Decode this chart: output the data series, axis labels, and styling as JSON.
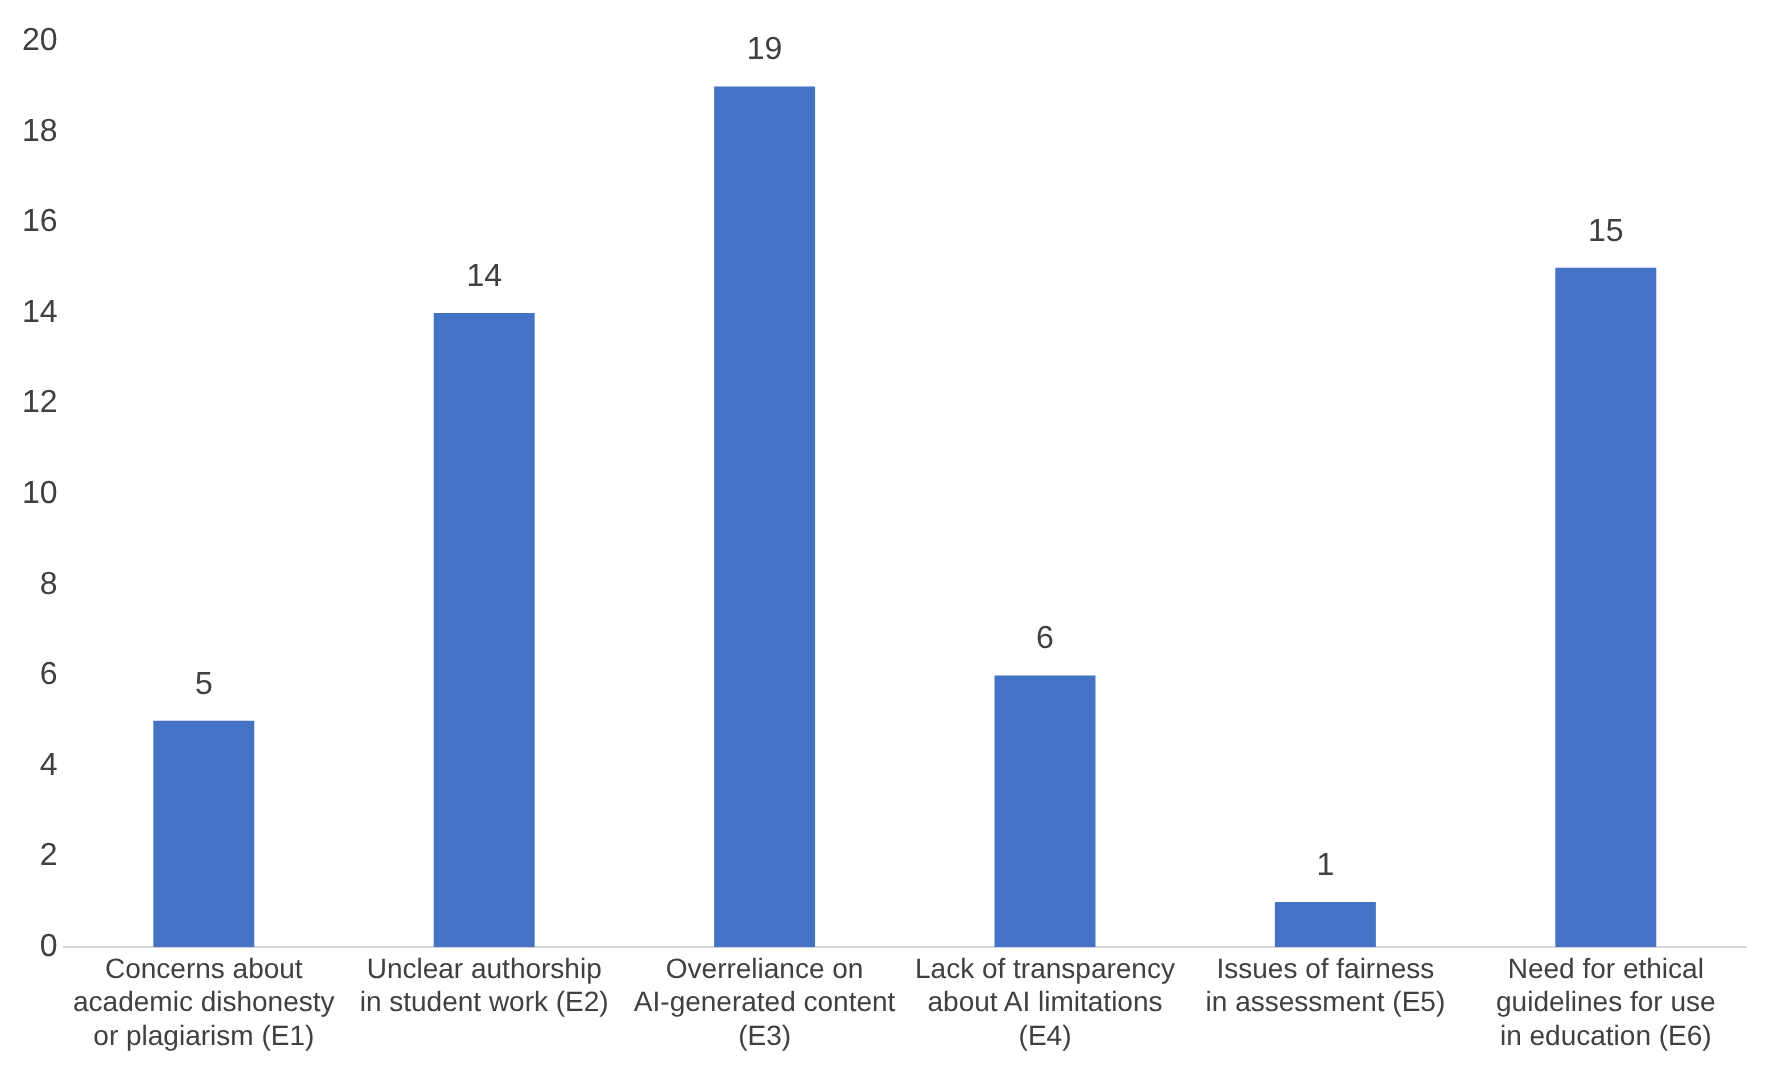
{
  "chart_data": {
    "type": "bar",
    "categories": [
      "Concerns about academic dishonesty or plagiarism (E1)",
      "Unclear authorship in student work (E2)",
      "Overreliance on AI-generated content (E3)",
      "Lack of transparency about AI limitations (E4)",
      "Issues of fairness in assessment (E5)",
      "Need for ethical guidelines for use in education (E6)"
    ],
    "values": [
      5,
      14,
      19,
      6,
      1,
      15
    ],
    "color": "#4472c4",
    "ylim": [
      0,
      20
    ],
    "yticks": [
      0,
      2,
      4,
      6,
      8,
      10,
      12,
      14,
      16,
      18,
      20
    ],
    "grid": false,
    "data_labels": true,
    "legend": false
  }
}
